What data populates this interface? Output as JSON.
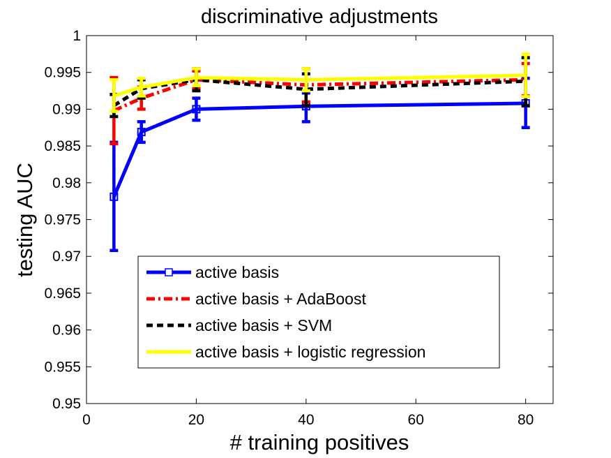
{
  "chart_data": {
    "type": "line",
    "title": "discriminative adjustments",
    "xlabel": "# training positives",
    "ylabel": "testing AUC",
    "xlim": [
      0,
      85
    ],
    "ylim": [
      0.95,
      1.0
    ],
    "xticks": [
      0,
      20,
      40,
      60,
      80
    ],
    "xtick_labels": [
      "0",
      "20",
      "40",
      "60",
      "80"
    ],
    "yticks": [
      0.95,
      0.955,
      0.96,
      0.965,
      0.97,
      0.975,
      0.98,
      0.985,
      0.99,
      0.995,
      1.0
    ],
    "ytick_labels": [
      "0.95",
      "0.955",
      "0.96",
      "0.965",
      "0.97",
      "0.975",
      "0.98",
      "0.985",
      "0.99",
      "0.995",
      "1"
    ],
    "grid": false,
    "legend_position": "bottom-center",
    "x": [
      5,
      10,
      20,
      40,
      80
    ],
    "series": [
      {
        "name": "active basis",
        "color": "#0000ff",
        "line_style": "solid",
        "marker": "square",
        "values": [
          0.9781,
          0.9869,
          0.99,
          0.9904,
          0.9908
        ],
        "err_low": [
          0.9708,
          0.9855,
          0.9885,
          0.9883,
          0.9875
        ],
        "err_high": [
          0.9855,
          0.9883,
          0.9915,
          0.9922,
          0.9942
        ]
      },
      {
        "name": "active basis + AdaBoost",
        "color": "#ff0000",
        "line_style": "dashdot",
        "marker": "none",
        "values": [
          0.9898,
          0.9915,
          0.994,
          0.9933,
          0.994
        ],
        "err_low": [
          0.9853,
          0.99,
          0.9928,
          0.991,
          0.9918
        ],
        "err_high": [
          0.9943,
          0.993,
          0.9952,
          0.9955,
          0.9962
        ]
      },
      {
        "name": "active basis + SVM",
        "color": "#000000",
        "line_style": "dashed",
        "marker": "none",
        "values": [
          0.9905,
          0.9928,
          0.994,
          0.9927,
          0.9938
        ],
        "err_low": [
          0.989,
          0.9915,
          0.9925,
          0.9905,
          0.9905
        ],
        "err_high": [
          0.992,
          0.994,
          0.9955,
          0.9948,
          0.997
        ]
      },
      {
        "name": "active basis + logistic regression",
        "color": "#ffff00",
        "line_style": "solid",
        "marker": "none",
        "values": [
          0.9918,
          0.993,
          0.9943,
          0.994,
          0.9946
        ],
        "err_low": [
          0.9897,
          0.9918,
          0.9932,
          0.9925,
          0.9917
        ],
        "err_high": [
          0.994,
          0.9942,
          0.9955,
          0.9955,
          0.9975
        ]
      }
    ]
  }
}
